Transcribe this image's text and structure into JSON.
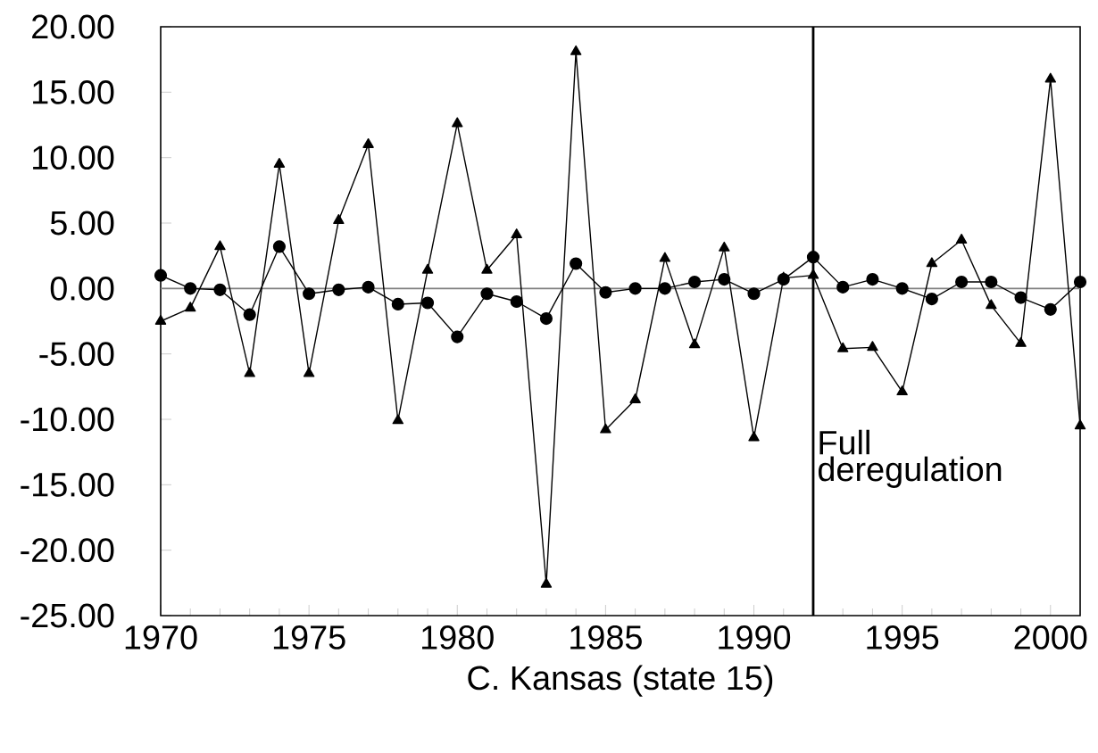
{
  "chart_data": {
    "type": "line",
    "xlabel": "C. Kansas (state 15)",
    "x": [
      1970,
      1971,
      1972,
      1973,
      1974,
      1975,
      1976,
      1977,
      1978,
      1979,
      1980,
      1981,
      1982,
      1983,
      1984,
      1985,
      1986,
      1987,
      1988,
      1989,
      1990,
      1991,
      1992,
      1993,
      1994,
      1995,
      1996,
      1997,
      1998,
      1999,
      2000,
      2001
    ],
    "series": [
      {
        "color": "#000000",
        "marker": "triangle",
        "values": [
          -2.5,
          -1.5,
          3.2,
          -6.5,
          9.5,
          -6.5,
          5.2,
          11.0,
          -10.1,
          1.4,
          12.6,
          1.4,
          4.1,
          -22.6,
          18.1,
          -10.8,
          -8.5,
          2.3,
          -4.3,
          3.1,
          -11.4,
          0.8,
          1.0,
          -4.6,
          -4.5,
          -7.9,
          1.9,
          3.7,
          -1.3,
          -4.2,
          16.0,
          -10.5
        ]
      },
      {
        "color": "#000000",
        "marker": "circle",
        "values": [
          1.0,
          0.0,
          -0.1,
          -2.0,
          3.2,
          -0.4,
          -0.1,
          0.1,
          -1.2,
          -1.1,
          -3.7,
          -0.4,
          -1.0,
          -2.3,
          1.9,
          -0.3,
          0.0,
          0.0,
          0.5,
          0.7,
          -0.4,
          0.7,
          2.4,
          0.1,
          0.7,
          0.0,
          -0.8,
          0.5,
          0.5,
          -0.7,
          -1.6,
          0.5
        ]
      }
    ],
    "xlim": [
      1970,
      2001
    ],
    "xticks": [
      1970,
      1975,
      1980,
      1985,
      1990,
      1995,
      2000
    ],
    "ylim": [
      -25,
      20
    ],
    "yticks": [
      {
        "value": -25,
        "label": "-25.00"
      },
      {
        "value": -20,
        "label": "-20.00"
      },
      {
        "value": -15,
        "label": "-15.00"
      },
      {
        "value": -10,
        "label": "-10.00"
      },
      {
        "value": -5,
        "label": "-5.00"
      },
      {
        "value": 0,
        "label": "0.00"
      },
      {
        "value": 5,
        "label": "5.00"
      },
      {
        "value": 10,
        "label": "10.00"
      },
      {
        "value": 15,
        "label": "15.00"
      },
      {
        "value": 20,
        "label": "20.00"
      }
    ],
    "ref_lines": [
      {
        "axis": "y",
        "value": 0,
        "color": "#808080"
      },
      {
        "axis": "x",
        "value": 1992,
        "color": "#000000",
        "label": "Full deregulation"
      }
    ],
    "grid": false
  }
}
